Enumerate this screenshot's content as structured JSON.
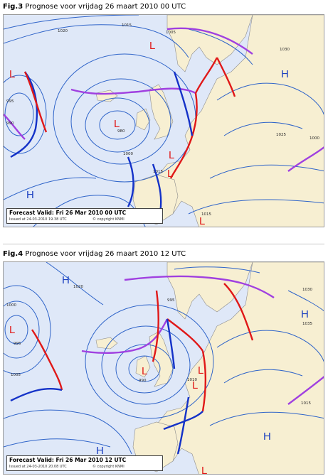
{
  "figures": [
    {
      "label": "Fig.3",
      "caption": "Prognose voor vrijdag 26 maart 2010 00 UTC",
      "forecast_valid": "Forecast Valid:  Fri 26 Mar 2010 00 UTC",
      "issued": "Issued at 24-03-2010 19.38 UTC",
      "copyright": "© copyright KNMI",
      "highs": [
        "H",
        "H"
      ],
      "lows": [
        "L",
        "L",
        "L",
        "L",
        "L",
        "L"
      ],
      "isobar_labels": [
        "1020",
        "1015",
        "1005",
        "995",
        "990",
        "980",
        "1000",
        "1015",
        "1025",
        "1030",
        "1000",
        "1015"
      ]
    },
    {
      "label": "Fig.4",
      "caption": "Prognose voor vrijdag 26 maart 2010 12 UTC",
      "forecast_valid": "Forecast Valid:  Fri 26 Mar 2010 12 UTC",
      "issued": "Issued at 24-03-2010 20.08 UTC",
      "copyright": "© copyright KNMI",
      "highs": [
        "H",
        "H",
        "H",
        "H"
      ],
      "lows": [
        "L",
        "L",
        "L",
        "L",
        "L"
      ],
      "isobar_labels": [
        "1020",
        "1000",
        "995",
        "1005",
        "995",
        "990",
        "1010",
        "1030",
        "1035",
        "1015"
      ]
    }
  ],
  "colors": {
    "sea": "#dfe8f8",
    "land": "#f7efd2",
    "isobar": "#2f64c9",
    "cold_front": "#1432c8",
    "warm_front": "#e01818",
    "occluded_front": "#a040e0",
    "high": "#1a3fc0",
    "low": "#e01818"
  }
}
